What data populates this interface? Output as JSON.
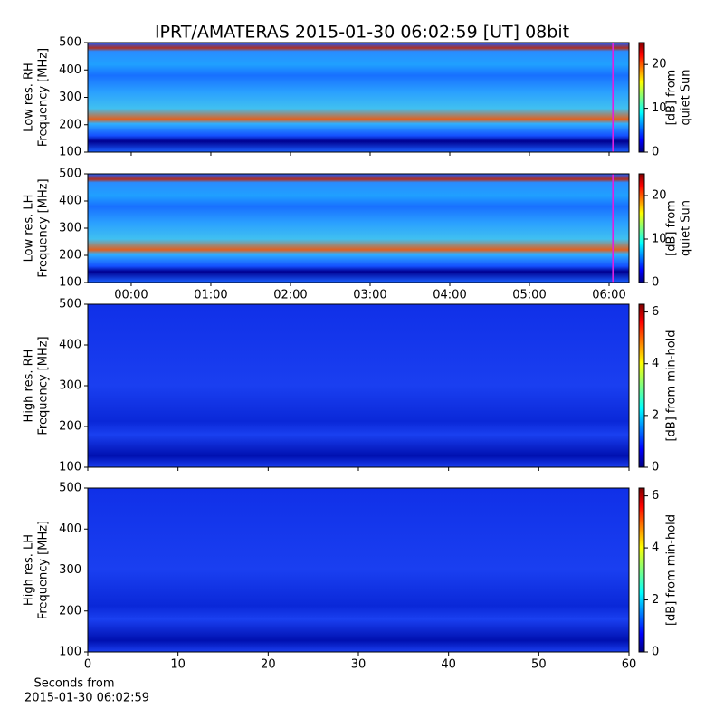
{
  "title": "IPRT/AMATERAS 2015-01-30 06:02:59 [UT]   08bit",
  "chart_data": [
    {
      "type": "heatmap",
      "ylabel": [
        "Low res. RH",
        "Frequency [MHz]"
      ],
      "ylim": [
        100,
        500
      ],
      "yticks": [
        100,
        200,
        300,
        400,
        500
      ],
      "xlim": [
        -0.545,
        6.25
      ],
      "xticks": [
        0,
        1,
        2,
        3,
        4,
        5,
        6
      ],
      "show_xtick_labels": false,
      "vline": 6.05,
      "vline_color": "#e020e0",
      "clim": [
        0,
        25
      ],
      "cticks": [
        0,
        10,
        20
      ],
      "clabel": [
        "[dB] from",
        "quiet Sun"
      ]
    },
    {
      "type": "heatmap",
      "ylabel": [
        "Low res. LH",
        "Frequency [MHz]"
      ],
      "ylim": [
        100,
        500
      ],
      "yticks": [
        100,
        200,
        300,
        400,
        500
      ],
      "xlim": [
        -0.545,
        6.25
      ],
      "xticks": [
        {
          "value": 0,
          "label": "00:00"
        },
        {
          "value": 1,
          "label": "01:00"
        },
        {
          "value": 2,
          "label": "02:00"
        },
        {
          "value": 3,
          "label": "03:00"
        },
        {
          "value": 4,
          "label": "04:00"
        },
        {
          "value": 5,
          "label": "05:00"
        },
        {
          "value": 6,
          "label": "06:00"
        }
      ],
      "show_xtick_labels": true,
      "vline": 6.05,
      "vline_color": "#e020e0",
      "clim": [
        0,
        25
      ],
      "cticks": [
        0,
        10,
        20
      ],
      "clabel": [
        "[dB] from",
        "quiet Sun"
      ]
    },
    {
      "type": "heatmap",
      "ylabel": [
        "High res. RH",
        "Frequency [MHz]"
      ],
      "ylim": [
        100,
        500
      ],
      "yticks": [
        100,
        200,
        300,
        400,
        500
      ],
      "xlim": [
        0,
        60
      ],
      "xticks": [
        0,
        10,
        20,
        30,
        40,
        50,
        60
      ],
      "show_xtick_labels": false,
      "clim": [
        0,
        6.3
      ],
      "cticks": [
        0,
        2,
        4,
        6
      ],
      "clabel": [
        "[dB] from min-hold"
      ]
    },
    {
      "type": "heatmap",
      "ylabel": [
        "High res. LH",
        "Frequency [MHz]"
      ],
      "ylim": [
        100,
        500
      ],
      "yticks": [
        100,
        200,
        300,
        400,
        500
      ],
      "xlim": [
        0,
        60
      ],
      "xticks": [
        0,
        10,
        20,
        30,
        40,
        50,
        60
      ],
      "show_xtick_labels": true,
      "xlabel": [
        "Seconds from",
        "2015-01-30 06:02:59"
      ],
      "clim": [
        0,
        6.3
      ],
      "cticks": [
        0,
        2,
        4,
        6
      ],
      "clabel": [
        "[dB] from min-hold"
      ]
    }
  ]
}
